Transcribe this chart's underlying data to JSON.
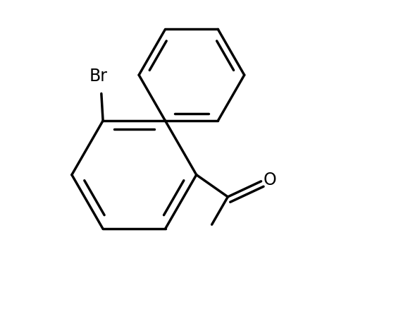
{
  "background_color": "#ffffff",
  "line_color": "#000000",
  "line_width": 2.5,
  "text_color": "#000000",
  "br_fontsize": 17,
  "o_fontsize": 17,
  "figsize": [
    5.62,
    4.59
  ],
  "dpi": 100,
  "br_label": "Br",
  "o_label": "O"
}
